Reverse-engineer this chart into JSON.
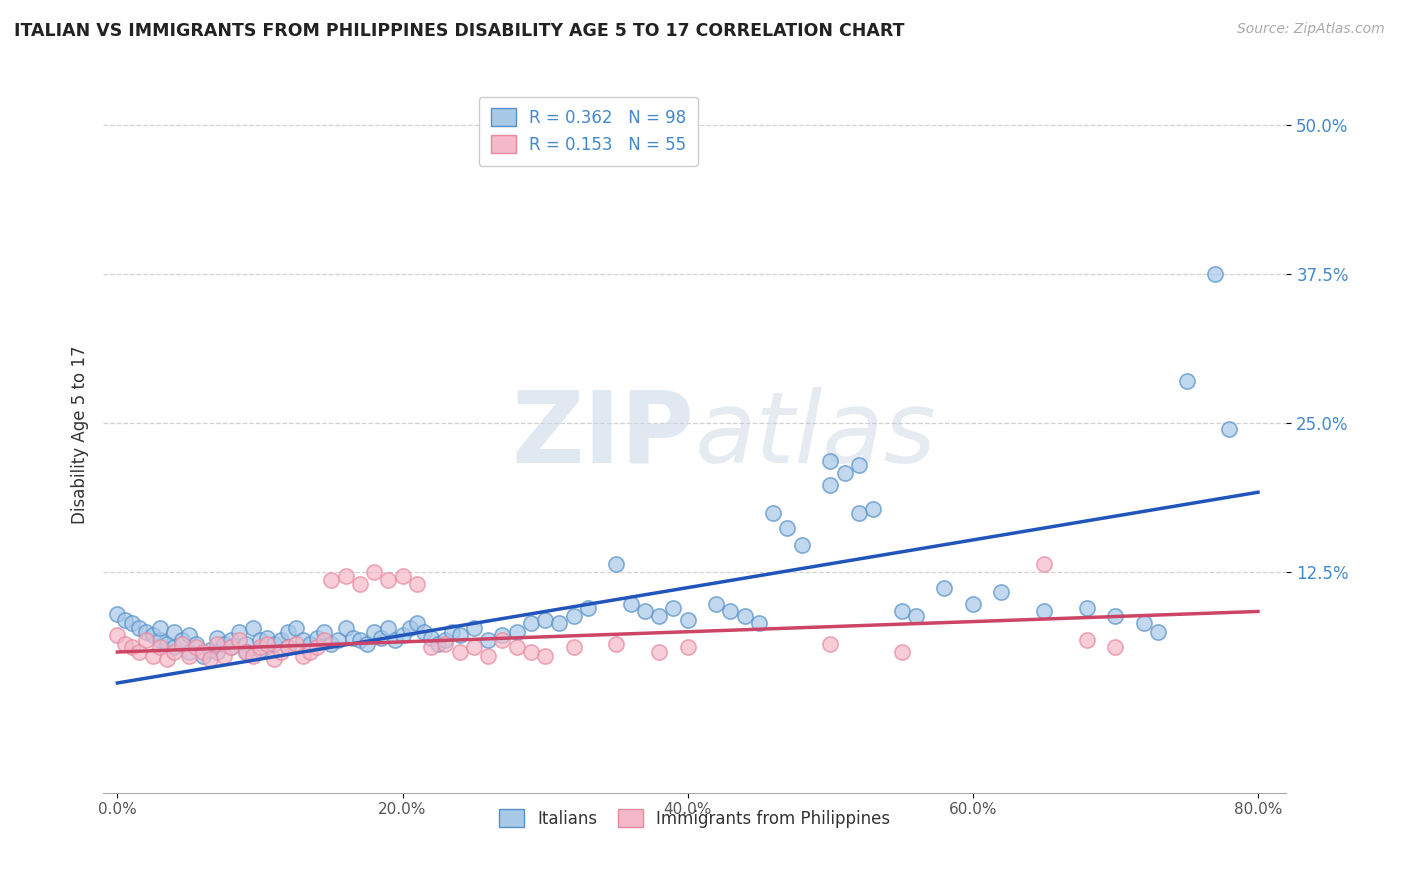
{
  "title": "ITALIAN VS IMMIGRANTS FROM PHILIPPINES DISABILITY AGE 5 TO 17 CORRELATION CHART",
  "source": "Source: ZipAtlas.com",
  "xlabel_ticks": [
    "0.0%",
    "20.0%",
    "40.0%",
    "60.0%",
    "80.0%"
  ],
  "xlabel_tick_vals": [
    0.0,
    0.2,
    0.4,
    0.6,
    0.8
  ],
  "ylabel": "Disability Age 5 to 17",
  "ylabel_ticks": [
    "12.5%",
    "25.0%",
    "37.5%",
    "50.0%"
  ],
  "ylabel_tick_vals": [
    0.125,
    0.25,
    0.375,
    0.5
  ],
  "xlim": [
    -0.01,
    0.82
  ],
  "ylim": [
    -0.06,
    0.54
  ],
  "legend1_label": "R = 0.362   N = 98",
  "legend2_label": "R = 0.153   N = 55",
  "legend_italians": "Italians",
  "legend_philippines": "Immigrants from Philippines",
  "blue_color": "#a8c8e8",
  "pink_color": "#f4b8c8",
  "blue_edge_color": "#5590c8",
  "pink_edge_color": "#e888a0",
  "blue_line_color": "#2255bb",
  "pink_line_color": "#cc4466",
  "watermark_zip": "ZIP",
  "watermark_atlas": "atlas",
  "scatter_blue": [
    [
      0.0,
      0.09
    ],
    [
      0.005,
      0.085
    ],
    [
      0.01,
      0.082
    ],
    [
      0.015,
      0.078
    ],
    [
      0.02,
      0.075
    ],
    [
      0.025,
      0.072
    ],
    [
      0.03,
      0.068
    ],
    [
      0.03,
      0.078
    ],
    [
      0.035,
      0.065
    ],
    [
      0.04,
      0.062
    ],
    [
      0.04,
      0.075
    ],
    [
      0.045,
      0.068
    ],
    [
      0.05,
      0.058
    ],
    [
      0.05,
      0.072
    ],
    [
      0.055,
      0.065
    ],
    [
      0.06,
      0.055
    ],
    [
      0.065,
      0.06
    ],
    [
      0.07,
      0.07
    ],
    [
      0.07,
      0.058
    ],
    [
      0.075,
      0.065
    ],
    [
      0.08,
      0.062
    ],
    [
      0.08,
      0.068
    ],
    [
      0.085,
      0.075
    ],
    [
      0.09,
      0.065
    ],
    [
      0.09,
      0.058
    ],
    [
      0.095,
      0.078
    ],
    [
      0.1,
      0.068
    ],
    [
      0.1,
      0.06
    ],
    [
      0.105,
      0.07
    ],
    [
      0.11,
      0.065
    ],
    [
      0.115,
      0.068
    ],
    [
      0.12,
      0.075
    ],
    [
      0.12,
      0.062
    ],
    [
      0.125,
      0.078
    ],
    [
      0.13,
      0.068
    ],
    [
      0.135,
      0.065
    ],
    [
      0.14,
      0.07
    ],
    [
      0.145,
      0.075
    ],
    [
      0.15,
      0.065
    ],
    [
      0.155,
      0.068
    ],
    [
      0.16,
      0.078
    ],
    [
      0.165,
      0.07
    ],
    [
      0.17,
      0.068
    ],
    [
      0.175,
      0.065
    ],
    [
      0.18,
      0.075
    ],
    [
      0.185,
      0.07
    ],
    [
      0.19,
      0.078
    ],
    [
      0.195,
      0.068
    ],
    [
      0.2,
      0.072
    ],
    [
      0.205,
      0.078
    ],
    [
      0.21,
      0.082
    ],
    [
      0.215,
      0.075
    ],
    [
      0.22,
      0.07
    ],
    [
      0.225,
      0.065
    ],
    [
      0.23,
      0.068
    ],
    [
      0.235,
      0.075
    ],
    [
      0.24,
      0.072
    ],
    [
      0.25,
      0.078
    ],
    [
      0.26,
      0.068
    ],
    [
      0.27,
      0.072
    ],
    [
      0.28,
      0.075
    ],
    [
      0.29,
      0.082
    ],
    [
      0.3,
      0.085
    ],
    [
      0.31,
      0.082
    ],
    [
      0.32,
      0.088
    ],
    [
      0.33,
      0.095
    ],
    [
      0.35,
      0.132
    ],
    [
      0.36,
      0.098
    ],
    [
      0.37,
      0.092
    ],
    [
      0.38,
      0.088
    ],
    [
      0.39,
      0.095
    ],
    [
      0.4,
      0.085
    ],
    [
      0.42,
      0.098
    ],
    [
      0.43,
      0.092
    ],
    [
      0.44,
      0.088
    ],
    [
      0.45,
      0.082
    ],
    [
      0.46,
      0.175
    ],
    [
      0.47,
      0.162
    ],
    [
      0.48,
      0.148
    ],
    [
      0.5,
      0.198
    ],
    [
      0.5,
      0.218
    ],
    [
      0.51,
      0.208
    ],
    [
      0.52,
      0.175
    ],
    [
      0.53,
      0.178
    ],
    [
      0.55,
      0.092
    ],
    [
      0.56,
      0.088
    ],
    [
      0.58,
      0.112
    ],
    [
      0.6,
      0.098
    ],
    [
      0.62,
      0.108
    ],
    [
      0.65,
      0.092
    ],
    [
      0.68,
      0.095
    ],
    [
      0.7,
      0.088
    ],
    [
      0.72,
      0.082
    ],
    [
      0.73,
      0.075
    ],
    [
      0.75,
      0.285
    ],
    [
      0.77,
      0.375
    ],
    [
      0.78,
      0.245
    ],
    [
      0.52,
      0.215
    ]
  ],
  "scatter_pink": [
    [
      0.0,
      0.072
    ],
    [
      0.005,
      0.065
    ],
    [
      0.01,
      0.062
    ],
    [
      0.015,
      0.058
    ],
    [
      0.02,
      0.068
    ],
    [
      0.025,
      0.055
    ],
    [
      0.03,
      0.062
    ],
    [
      0.035,
      0.052
    ],
    [
      0.04,
      0.058
    ],
    [
      0.045,
      0.065
    ],
    [
      0.05,
      0.055
    ],
    [
      0.055,
      0.062
    ],
    [
      0.06,
      0.058
    ],
    [
      0.065,
      0.052
    ],
    [
      0.07,
      0.065
    ],
    [
      0.075,
      0.055
    ],
    [
      0.08,
      0.062
    ],
    [
      0.085,
      0.068
    ],
    [
      0.09,
      0.058
    ],
    [
      0.095,
      0.055
    ],
    [
      0.1,
      0.062
    ],
    [
      0.105,
      0.065
    ],
    [
      0.11,
      0.052
    ],
    [
      0.115,
      0.058
    ],
    [
      0.12,
      0.062
    ],
    [
      0.125,
      0.065
    ],
    [
      0.13,
      0.055
    ],
    [
      0.135,
      0.058
    ],
    [
      0.14,
      0.062
    ],
    [
      0.145,
      0.068
    ],
    [
      0.15,
      0.118
    ],
    [
      0.16,
      0.122
    ],
    [
      0.17,
      0.115
    ],
    [
      0.18,
      0.125
    ],
    [
      0.19,
      0.118
    ],
    [
      0.2,
      0.122
    ],
    [
      0.21,
      0.115
    ],
    [
      0.22,
      0.062
    ],
    [
      0.23,
      0.065
    ],
    [
      0.24,
      0.058
    ],
    [
      0.25,
      0.062
    ],
    [
      0.26,
      0.055
    ],
    [
      0.27,
      0.068
    ],
    [
      0.28,
      0.062
    ],
    [
      0.29,
      0.058
    ],
    [
      0.3,
      0.055
    ],
    [
      0.32,
      0.062
    ],
    [
      0.35,
      0.065
    ],
    [
      0.38,
      0.058
    ],
    [
      0.4,
      0.062
    ],
    [
      0.5,
      0.065
    ],
    [
      0.55,
      0.058
    ],
    [
      0.65,
      0.132
    ],
    [
      0.68,
      0.068
    ],
    [
      0.7,
      0.062
    ]
  ],
  "blue_trendline": [
    [
      0.0,
      0.032
    ],
    [
      0.8,
      0.192
    ]
  ],
  "pink_trendline": [
    [
      0.0,
      0.058
    ],
    [
      0.8,
      0.092
    ]
  ]
}
